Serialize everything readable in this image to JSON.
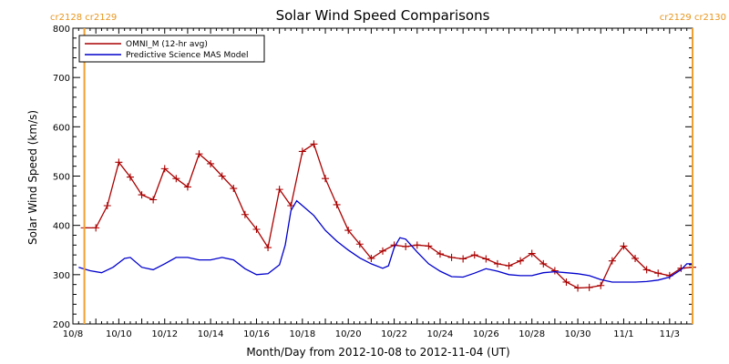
{
  "chart_data": {
    "type": "line",
    "title": "Solar Wind Speed Comparisons",
    "xlabel": "Month/Day from 2012-10-08 to 2012-11-04 (UT)",
    "ylabel": "Solar Wind Speed (km/s)",
    "xlim": [
      "2012-10-08",
      "2012-11-04"
    ],
    "ylim": [
      200,
      800
    ],
    "x_tick_labels": [
      {
        "date": "2012-10-08",
        "label": "10/8"
      },
      {
        "date": "2012-10-10",
        "label": "10/10"
      },
      {
        "date": "2012-10-12",
        "label": "10/12"
      },
      {
        "date": "2012-10-14",
        "label": "10/14"
      },
      {
        "date": "2012-10-16",
        "label": "10/16"
      },
      {
        "date": "2012-10-18",
        "label": "10/18"
      },
      {
        "date": "2012-10-20",
        "label": "10/20"
      },
      {
        "date": "2012-10-22",
        "label": "10/22"
      },
      {
        "date": "2012-10-24",
        "label": "10/24"
      },
      {
        "date": "2012-10-26",
        "label": "10/26"
      },
      {
        "date": "2012-10-28",
        "label": "10/28"
      },
      {
        "date": "2012-10-30",
        "label": "10/30"
      },
      {
        "date": "2012-11-01",
        "label": "11/1"
      },
      {
        "date": "2012-11-03",
        "label": "11/3"
      }
    ],
    "y_ticks": [
      200,
      300,
      400,
      500,
      600,
      700,
      800
    ],
    "carrington_markers": [
      {
        "date": "2012-10-08T12:00",
        "label": "cr2128 cr2129",
        "side": "left"
      },
      {
        "date": "2012-11-04T00:00",
        "label": "cr2129 cr2130",
        "side": "right"
      }
    ],
    "legend_position": "top-left",
    "series": [
      {
        "name": "OMNI_M (12-hr avg)",
        "color": "#aa0000",
        "marker": "plus",
        "points": [
          [
            "2012-10-08T12:00",
            395
          ],
          [
            "2012-10-09T00:00",
            395
          ],
          [
            "2012-10-09T12:00",
            440
          ],
          [
            "2012-10-10T00:00",
            528
          ],
          [
            "2012-10-10T12:00",
            498
          ],
          [
            "2012-10-11T00:00",
            462
          ],
          [
            "2012-10-11T12:00",
            452
          ],
          [
            "2012-10-12T00:00",
            515
          ],
          [
            "2012-10-12T12:00",
            495
          ],
          [
            "2012-10-13T00:00",
            478
          ],
          [
            "2012-10-13T12:00",
            545
          ],
          [
            "2012-10-14T00:00",
            525
          ],
          [
            "2012-10-14T12:00",
            500
          ],
          [
            "2012-10-15T00:00",
            475
          ],
          [
            "2012-10-15T12:00",
            422
          ],
          [
            "2012-10-16T00:00",
            392
          ],
          [
            "2012-10-16T12:00",
            355
          ],
          [
            "2012-10-17T00:00",
            473
          ],
          [
            "2012-10-17T12:00",
            440
          ],
          [
            "2012-10-18T00:00",
            550
          ],
          [
            "2012-10-18T12:00",
            565
          ],
          [
            "2012-10-19T00:00",
            495
          ],
          [
            "2012-10-19T12:00",
            442
          ],
          [
            "2012-10-20T00:00",
            390
          ],
          [
            "2012-10-20T12:00",
            362
          ],
          [
            "2012-10-21T00:00",
            333
          ],
          [
            "2012-10-21T12:00",
            348
          ],
          [
            "2012-10-22T00:00",
            360
          ],
          [
            "2012-10-22T12:00",
            357
          ],
          [
            "2012-10-23T00:00",
            360
          ],
          [
            "2012-10-23T12:00",
            358
          ],
          [
            "2012-10-24T00:00",
            342
          ],
          [
            "2012-10-24T12:00",
            335
          ],
          [
            "2012-10-25T00:00",
            332
          ],
          [
            "2012-10-25T12:00",
            340
          ],
          [
            "2012-10-26T00:00",
            332
          ],
          [
            "2012-10-26T12:00",
            322
          ],
          [
            "2012-10-27T00:00",
            318
          ],
          [
            "2012-10-27T12:00",
            328
          ],
          [
            "2012-10-28T00:00",
            343
          ],
          [
            "2012-10-28T12:00",
            322
          ],
          [
            "2012-10-29T00:00",
            308
          ],
          [
            "2012-10-29T12:00",
            285
          ],
          [
            "2012-10-30T00:00",
            273
          ],
          [
            "2012-10-30T12:00",
            274
          ],
          [
            "2012-10-31T00:00",
            278
          ],
          [
            "2012-10-31T12:00",
            328
          ],
          [
            "2012-11-01T00:00",
            358
          ],
          [
            "2012-11-01T12:00",
            333
          ],
          [
            "2012-11-02T00:00",
            310
          ],
          [
            "2012-11-02T12:00",
            303
          ],
          [
            "2012-11-03T00:00",
            298
          ],
          [
            "2012-11-03T12:00",
            313
          ],
          [
            "2012-11-04T00:00",
            315
          ]
        ]
      },
      {
        "name": "Predictive Science MAS Model",
        "color": "#0000cc",
        "marker": "none",
        "points": [
          [
            "2012-10-08T06:00",
            315
          ],
          [
            "2012-10-08T18:00",
            308
          ],
          [
            "2012-10-09T06:00",
            304
          ],
          [
            "2012-10-09T18:00",
            315
          ],
          [
            "2012-10-10T06:00",
            333
          ],
          [
            "2012-10-10T12:00",
            335
          ],
          [
            "2012-10-11T00:00",
            315
          ],
          [
            "2012-10-11T12:00",
            310
          ],
          [
            "2012-10-12T00:00",
            322
          ],
          [
            "2012-10-12T12:00",
            335
          ],
          [
            "2012-10-13T00:00",
            335
          ],
          [
            "2012-10-13T12:00",
            330
          ],
          [
            "2012-10-14T00:00",
            330
          ],
          [
            "2012-10-14T12:00",
            335
          ],
          [
            "2012-10-15T00:00",
            330
          ],
          [
            "2012-10-15T12:00",
            312
          ],
          [
            "2012-10-16T00:00",
            300
          ],
          [
            "2012-10-16T12:00",
            302
          ],
          [
            "2012-10-17T00:00",
            320
          ],
          [
            "2012-10-17T06:00",
            360
          ],
          [
            "2012-10-17T12:00",
            430
          ],
          [
            "2012-10-17T18:00",
            450
          ],
          [
            "2012-10-18T00:00",
            440
          ],
          [
            "2012-10-18T12:00",
            420
          ],
          [
            "2012-10-19T00:00",
            390
          ],
          [
            "2012-10-19T12:00",
            368
          ],
          [
            "2012-10-20T00:00",
            350
          ],
          [
            "2012-10-20T12:00",
            334
          ],
          [
            "2012-10-21T00:00",
            322
          ],
          [
            "2012-10-21T12:00",
            313
          ],
          [
            "2012-10-21T18:00",
            318
          ],
          [
            "2012-10-22T00:00",
            355
          ],
          [
            "2012-10-22T06:00",
            375
          ],
          [
            "2012-10-22T12:00",
            372
          ],
          [
            "2012-10-23T00:00",
            346
          ],
          [
            "2012-10-23T12:00",
            322
          ],
          [
            "2012-10-24T00:00",
            307
          ],
          [
            "2012-10-24T12:00",
            296
          ],
          [
            "2012-10-25T00:00",
            295
          ],
          [
            "2012-10-25T12:00",
            303
          ],
          [
            "2012-10-26T00:00",
            312
          ],
          [
            "2012-10-26T12:00",
            307
          ],
          [
            "2012-10-27T00:00",
            300
          ],
          [
            "2012-10-27T12:00",
            298
          ],
          [
            "2012-10-28T00:00",
            298
          ],
          [
            "2012-10-28T12:00",
            304
          ],
          [
            "2012-10-29T00:00",
            306
          ],
          [
            "2012-10-29T12:00",
            304
          ],
          [
            "2012-10-30T00:00",
            302
          ],
          [
            "2012-10-30T12:00",
            298
          ],
          [
            "2012-10-31T00:00",
            290
          ],
          [
            "2012-10-31T12:00",
            285
          ],
          [
            "2012-11-01T00:00",
            285
          ],
          [
            "2012-11-01T12:00",
            285
          ],
          [
            "2012-11-02T00:00",
            286
          ],
          [
            "2012-11-02T12:00",
            289
          ],
          [
            "2012-11-03T00:00",
            295
          ],
          [
            "2012-11-03T12:00",
            310
          ],
          [
            "2012-11-03T18:00",
            322
          ],
          [
            "2012-11-04T00:00",
            322
          ]
        ]
      }
    ]
  }
}
